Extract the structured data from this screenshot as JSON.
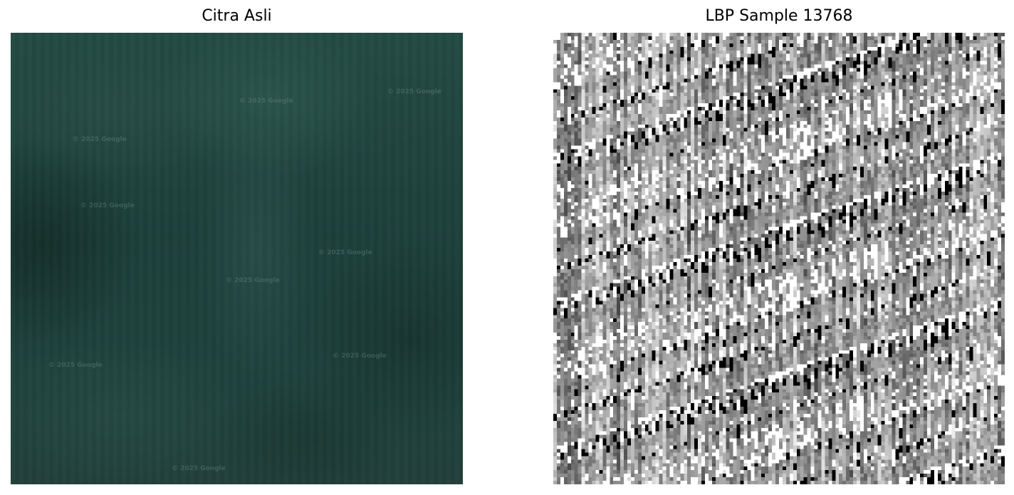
{
  "left_panel": {
    "title": "Citra Asli",
    "watermarks": [
      "© 2025 Google",
      "© 2025 Google",
      "© 2025 Google",
      "© 2025 Google",
      "© 2025 Google",
      "© 2025 Google",
      "© 2025 Google",
      "© 2025 Google",
      "© 2025 Google"
    ]
  },
  "right_panel": {
    "title": "LBP Sample 13768"
  },
  "colors": {
    "background": "#ffffff",
    "title_text": "#000000"
  }
}
